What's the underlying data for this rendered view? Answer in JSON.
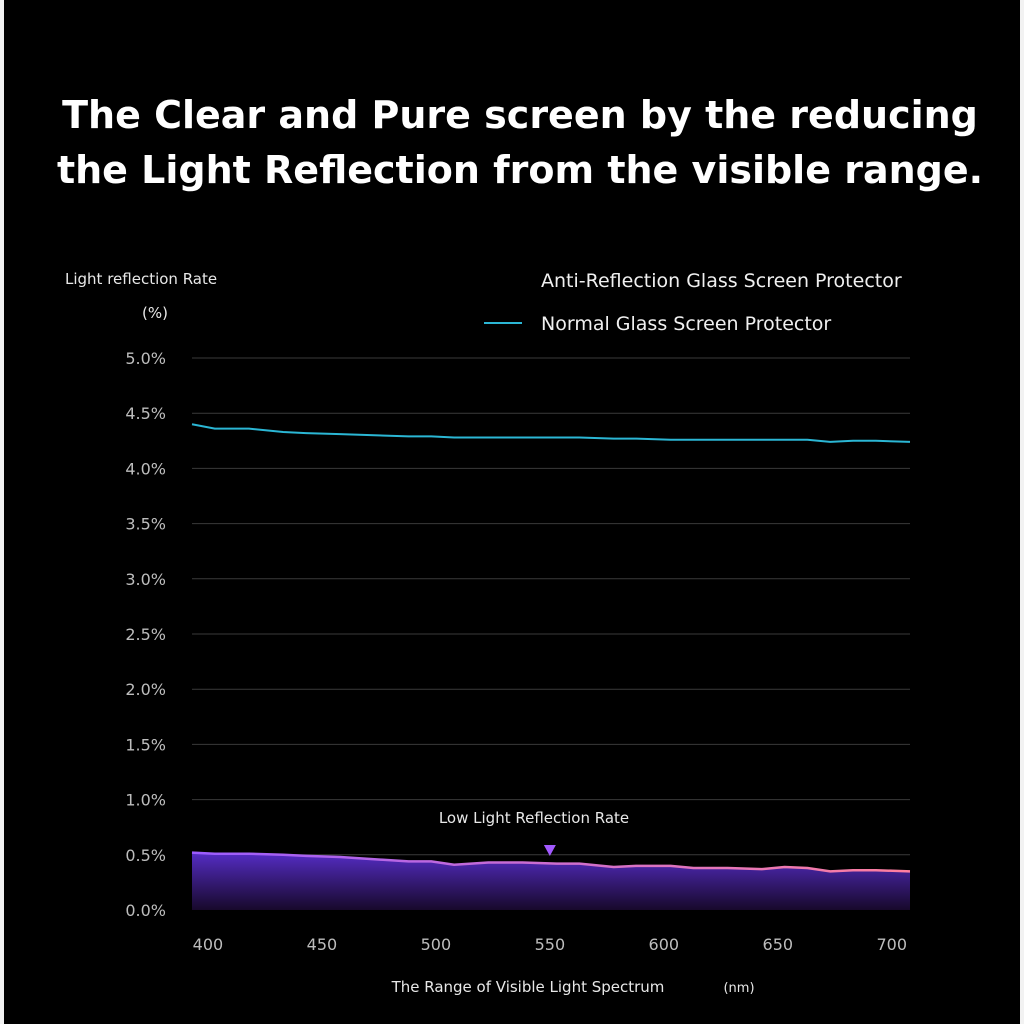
{
  "chart_data": {
    "type": "area",
    "title_lines": [
      "The Clear and Pure screen by the reducing",
      "the Light Reflection from the visible range."
    ],
    "ylabel": "Light reflection Rate",
    "yunit": "(%)",
    "xlabel": "The Range of Visible Light Spectrum",
    "xunit": "(nm)",
    "annotation": "Low Light Reflection Rate",
    "annotation_x": 550,
    "xlim": [
      393,
      708
    ],
    "ylim": [
      0.0,
      5.0
    ],
    "x_ticks": [
      "400",
      "450",
      "500",
      "550",
      "600",
      "650",
      "700"
    ],
    "y_ticks": [
      "0.0%",
      "0.5%",
      "1.0%",
      "1.5%",
      "2.0%",
      "2.5%",
      "3.0%",
      "3.5%",
      "4.0%",
      "4.5%",
      "5.0%"
    ],
    "x": [
      393,
      403,
      418,
      433,
      443,
      458,
      473,
      488,
      498,
      508,
      523,
      538,
      553,
      563,
      578,
      588,
      603,
      613,
      628,
      643,
      653,
      663,
      673,
      683,
      693,
      708
    ],
    "series": [
      {
        "name": "Anti-Reflection Glass Screen Protector",
        "color": "#9b5cff",
        "color_end": "#ff7f9f",
        "values": [
          0.52,
          0.51,
          0.51,
          0.5,
          0.49,
          0.48,
          0.46,
          0.44,
          0.44,
          0.41,
          0.43,
          0.43,
          0.42,
          0.42,
          0.39,
          0.4,
          0.4,
          0.38,
          0.38,
          0.37,
          0.39,
          0.38,
          0.35,
          0.36,
          0.36,
          0.35
        ]
      },
      {
        "name": "Normal Glass Screen Protector",
        "color": "#2bb6d4",
        "values": [
          4.4,
          4.36,
          4.36,
          4.33,
          4.32,
          4.31,
          4.3,
          4.29,
          4.29,
          4.28,
          4.28,
          4.28,
          4.28,
          4.28,
          4.27,
          4.27,
          4.26,
          4.26,
          4.26,
          4.26,
          4.26,
          4.26,
          4.24,
          4.25,
          4.25,
          4.24
        ]
      }
    ],
    "grid": true,
    "legend_position": "top-right"
  }
}
